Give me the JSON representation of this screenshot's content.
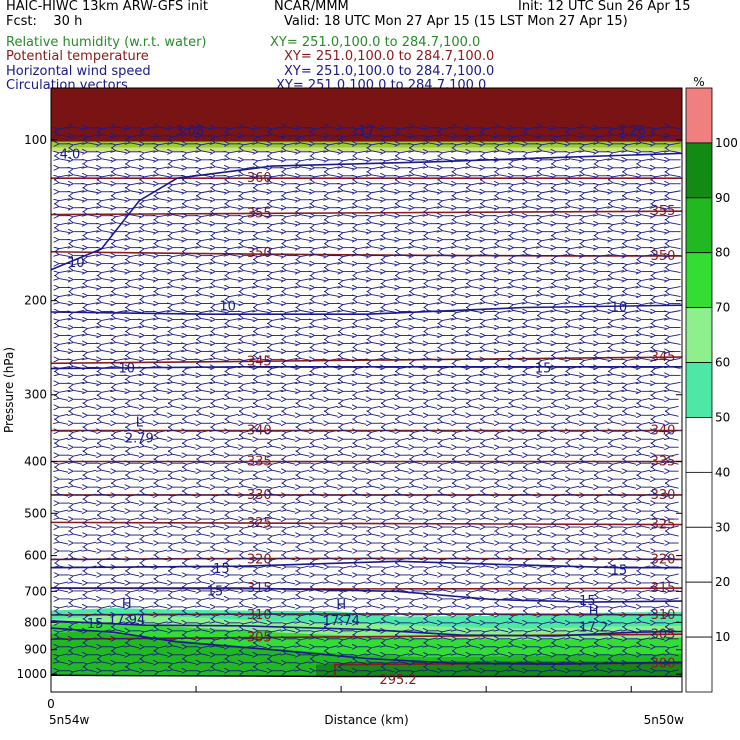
{
  "header": {
    "model_line": "HAIC-HIWC 13km ARW-GFS init",
    "org": "NCAR/MMM",
    "init": "Init: 12 UTC Sun 26 Apr 15",
    "fcst": "Fcst:    30 h",
    "valid": "Valid: 18 UTC Mon 27 Apr 15 (15 LST Mon 27 Apr 15)",
    "fields": [
      {
        "name": "Relative humidity (w.r.t. water)",
        "xy": "XY= 251.0,100.0 to 284.7,100.0",
        "color": "#2a8a2a"
      },
      {
        "name": "Potential temperature",
        "xy": "XY= 251.0,100.0 to 284.7,100.0",
        "color": "#8b1a1a"
      },
      {
        "name": "Horizontal wind speed",
        "xy": "XY= 251.0,100.0 to 284.7,100.0",
        "color": "#1a1a8a"
      },
      {
        "name": "Circulation vectors",
        "xy": "XY= 251.0,100.0 to 284.7,100.0",
        "color": "#1a1a8a"
      }
    ]
  },
  "chart_data": {
    "type": "heatmap",
    "xlabel": "Distance (km)",
    "ylabel": "Pressure (hPa)",
    "x_tick_labels": [
      "0",
      "5n54w",
      "5n50w"
    ],
    "y_ticks": [
      100,
      200,
      300,
      400,
      500,
      600,
      700,
      800,
      900,
      1000
    ],
    "y_scale": "log",
    "ylim": [
      1080,
      80
    ],
    "grid": false,
    "colorbar": {
      "unit": "%",
      "levels": [
        10,
        20,
        30,
        40,
        50,
        60,
        70,
        80,
        90,
        100
      ],
      "colors": [
        "#ffffff",
        "#ffffff",
        "#ffffff",
        "#ffffff",
        "#ffffff",
        "#4de8a6",
        "#8df08d",
        "#33dd33",
        "#22b822",
        "#138a13",
        "#f08080"
      ]
    },
    "rh_shading": [
      {
        "level": 50,
        "color": "#4de8a6"
      },
      {
        "level": 60,
        "color": "#8df08d"
      },
      {
        "level": 70,
        "color": "#33dd33"
      },
      {
        "level": 80,
        "color": "#22b822"
      },
      {
        "level": 90,
        "color": "#138a13"
      }
    ],
    "theta_contours": [
      {
        "value": 300,
        "labels": [
          "300"
        ]
      },
      {
        "value": 305,
        "labels": [
          "305",
          "305"
        ]
      },
      {
        "value": 310,
        "labels": [
          "310",
          "310"
        ]
      },
      {
        "value": 315,
        "labels": [
          "315",
          "315"
        ]
      },
      {
        "value": 320,
        "labels": [
          "320",
          "320"
        ]
      },
      {
        "value": 325,
        "labels": [
          "325",
          "325"
        ]
      },
      {
        "value": 330,
        "labels": [
          "330",
          "330"
        ]
      },
      {
        "value": 335,
        "labels": [
          "335",
          "335"
        ]
      },
      {
        "value": 340,
        "labels": [
          "340",
          "340"
        ]
      },
      {
        "value": 345,
        "labels": [
          "345",
          "345"
        ]
      },
      {
        "value": 350,
        "labels": [
          "350",
          "350"
        ]
      },
      {
        "value": 355,
        "labels": [
          "355",
          "355"
        ]
      },
      {
        "value": 360,
        "labels": [
          "360"
        ]
      }
    ],
    "wind_contours": [
      {
        "value": 10,
        "labels": [
          "10",
          "10",
          "10",
          "10"
        ]
      },
      {
        "value": 15,
        "labels": [
          "15",
          "15",
          "15",
          "15",
          "15",
          "15"
        ]
      }
    ],
    "extrema": [
      {
        "kind": "H",
        "value": "17.94"
      },
      {
        "kind": "H",
        "value": "17.74"
      },
      {
        "kind": "H",
        "value": "17.2"
      },
      {
        "kind": "L",
        "value": "2.79"
      },
      {
        "kind": "",
        "value": "295.2"
      },
      {
        "kind": "",
        "value": "3.08"
      },
      {
        "kind": "",
        "value": "3.26"
      },
      {
        "kind": "",
        "value": "17"
      },
      {
        "kind": "",
        "value": "4.0"
      }
    ],
    "vectors": "uniform westward circulation vectors across the cross-section"
  }
}
